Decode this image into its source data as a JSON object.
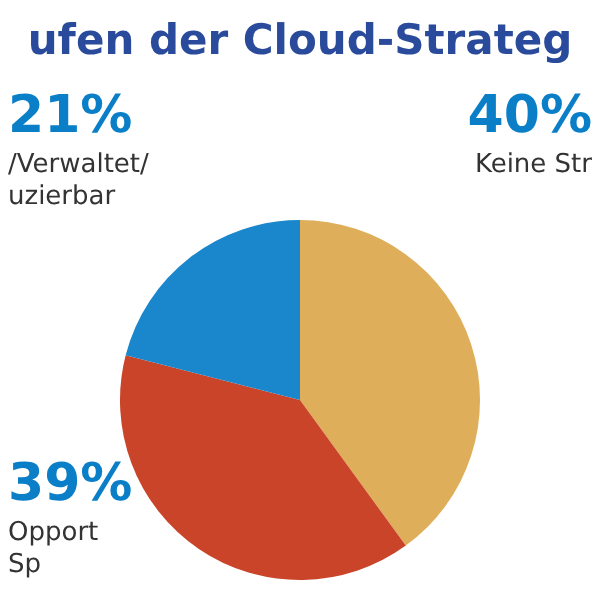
{
  "chart_data": {
    "type": "pie",
    "title": "ufen der Cloud-Strateg",
    "categories": [
      "Keine Str",
      "Opport\nSp",
      "/Verwaltet/\nuzierbar"
    ],
    "values": [
      40,
      39,
      21
    ],
    "value_labels": [
      "40%",
      "39%",
      "21%"
    ],
    "colors": [
      "#dfae5a",
      "#c94428",
      "#1a86cc"
    ],
    "legend": false
  }
}
